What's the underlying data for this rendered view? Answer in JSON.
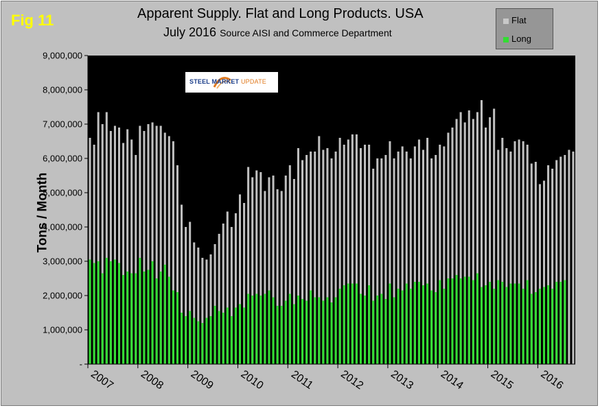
{
  "fig_label": "Fig 11",
  "title_line1": "Apparent Supply. Flat and Long Products. USA",
  "title_line2_main": "July 2016",
  "title_line2_source": "Source AISI and Commerce Department",
  "logo": {
    "main": "STEEL MARKET",
    "accent": "UPDATE"
  },
  "chart_data": {
    "type": "bar",
    "xlabel": "",
    "ylabel": "Tons / Month",
    "ylim": [
      0,
      9000000
    ],
    "y_ticks": [
      "-",
      "1,000,000",
      "2,000,000",
      "3,000,000",
      "4,000,000",
      "5,000,000",
      "6,000,000",
      "7,000,000",
      "8,000,000",
      "9,000,000"
    ],
    "x_ticks": [
      "2007",
      "2008",
      "2009",
      "2010",
      "2011",
      "2012",
      "2013",
      "2014",
      "2015",
      "2016"
    ],
    "start": "2007-01",
    "legend": {
      "placement": "top-right",
      "entries": [
        "Flat",
        "Long"
      ]
    },
    "grid": true,
    "colors": {
      "Flat": "#c0c0c0",
      "Long": "#33dd33",
      "plot_bg": "#000000"
    },
    "series": [
      {
        "name": "Flat",
        "values": [
          6600000,
          6400000,
          7350000,
          7000000,
          7350000,
          6800000,
          6950000,
          6900000,
          6450000,
          6850000,
          6550000,
          6100000,
          6950000,
          6800000,
          7000000,
          7050000,
          6950000,
          6950000,
          6750000,
          6650000,
          6500000,
          5800000,
          4650000,
          4000000,
          4150000,
          3550000,
          3400000,
          3100000,
          3050000,
          3200000,
          3500000,
          3800000,
          4100000,
          4450000,
          4000000,
          4400000,
          4950000,
          4700000,
          5750000,
          5450000,
          5650000,
          5600000,
          5050000,
          5450000,
          5500000,
          5100000,
          5050000,
          5500000,
          5800000,
          5400000,
          6300000,
          5950000,
          6100000,
          6200000,
          6200000,
          6650000,
          6250000,
          6300000,
          6000000,
          6200000,
          6600000,
          6400000,
          6550000,
          6700000,
          6700000,
          6300000,
          6400000,
          6400000,
          5700000,
          6000000,
          6000000,
          6100000,
          6500000,
          6000000,
          6200000,
          6350000,
          6200000,
          6000000,
          6350000,
          6550000,
          6250000,
          6600000,
          6000000,
          6100000,
          6400000,
          6350000,
          6750000,
          6900000,
          7150000,
          7350000,
          7050000,
          7400000,
          7150000,
          7350000,
          7700000,
          6900000,
          7200000,
          7450000,
          6250000,
          6600000,
          6300000,
          6200000,
          6500000,
          6550000,
          6500000,
          6400000,
          5850000,
          5900000,
          5250000,
          5350000,
          5800000,
          5700000,
          5950000,
          6050000,
          6100000,
          6250000,
          6200000
        ]
      },
      {
        "name": "Long",
        "values": [
          3050000,
          2950000,
          3000000,
          2650000,
          3100000,
          3000000,
          3050000,
          2950000,
          2600000,
          2700000,
          2650000,
          2650000,
          3100000,
          2700000,
          2750000,
          3000000,
          2500000,
          2700000,
          2900000,
          2550000,
          2150000,
          2100000,
          1500000,
          1400000,
          1550000,
          1350000,
          1250000,
          1200000,
          1350000,
          1400000,
          1700000,
          1550000,
          1500000,
          1650000,
          1400000,
          1650000,
          1750000,
          1650000,
          2050000,
          2000000,
          2050000,
          2000000,
          2050000,
          2150000,
          1950000,
          1700000,
          1700000,
          1850000,
          2050000,
          1750000,
          2000000,
          1900000,
          1850000,
          2150000,
          1950000,
          1950000,
          1850000,
          1950000,
          1800000,
          1950000,
          2200000,
          2300000,
          2350000,
          2350000,
          2350000,
          2050000,
          2000000,
          2300000,
          1850000,
          2000000,
          2050000,
          1900000,
          2350000,
          1950000,
          2200000,
          2150000,
          2350000,
          2200000,
          2400000,
          2400000,
          2300000,
          2350000,
          2150000,
          2100000,
          2450000,
          2200000,
          2500000,
          2500000,
          2600000,
          2500000,
          2550000,
          2550000,
          2450000,
          2650000,
          2250000,
          2300000,
          2400000,
          2200000,
          2450000,
          2400000,
          2250000,
          2350000,
          2350000,
          2350000,
          2200000,
          2450000,
          2050000,
          2100000,
          2200000,
          2250000,
          2300000,
          2200000,
          2400000,
          2400000,
          2450000
        ]
      }
    ]
  }
}
